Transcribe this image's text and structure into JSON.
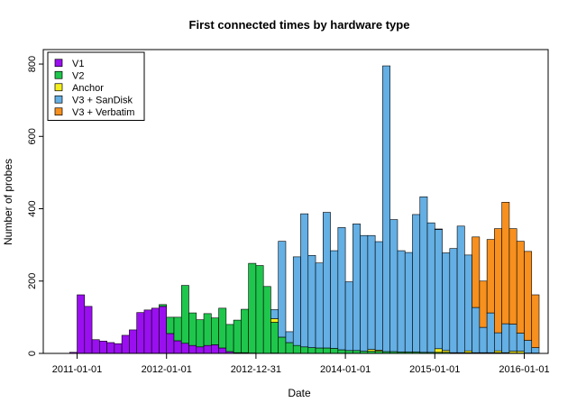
{
  "chart_data": {
    "type": "bar",
    "stacked": true,
    "title": "First connected times by hardware type",
    "xlabel": "Date",
    "ylabel": "Number of probes",
    "ylim": [
      0,
      840
    ],
    "yticks": [
      0,
      200,
      400,
      600,
      800
    ],
    "bin_count": 64,
    "bin_start": "2010-11-01",
    "bin_unit": "month",
    "x_tick_labels": [
      {
        "label": "2011-01-01",
        "bin": 2
      },
      {
        "label": "2012-01-01",
        "bin": 14
      },
      {
        "label": "2012-12-31",
        "bin": 26
      },
      {
        "label": "2014-01-01",
        "bin": 38
      },
      {
        "label": "2015-01-01",
        "bin": 50
      },
      {
        "label": "2016-01-01",
        "bin": 62
      }
    ],
    "grid": false,
    "legend_position": "top-left",
    "series": [
      {
        "name": "V1",
        "color": "#9a0ff0",
        "values": [
          0,
          3,
          162,
          130,
          38,
          34,
          30,
          27,
          50,
          65,
          113,
          120,
          125,
          130,
          55,
          35,
          28,
          22,
          18,
          22,
          24,
          15,
          5,
          2,
          2,
          1,
          0,
          0,
          1,
          0,
          0,
          0,
          0,
          0,
          0,
          0,
          0,
          0,
          0,
          0,
          0,
          0,
          0,
          0,
          0,
          0,
          0,
          0,
          0,
          0,
          0,
          0,
          0,
          0,
          0,
          0,
          0,
          0,
          0,
          0,
          0,
          0,
          0,
          0
        ]
      },
      {
        "name": "V2",
        "color": "#1fc64c",
        "values": [
          0,
          0,
          0,
          0,
          0,
          0,
          0,
          0,
          0,
          0,
          0,
          0,
          0,
          5,
          45,
          65,
          160,
          90,
          75,
          88,
          74,
          110,
          75,
          90,
          120,
          248,
          243,
          185,
          85,
          45,
          30,
          22,
          18,
          16,
          15,
          15,
          14,
          10,
          8,
          8,
          6,
          6,
          6,
          5,
          5,
          4,
          4,
          4,
          3,
          3,
          3,
          3,
          2,
          2,
          2,
          2,
          2,
          2,
          2,
          2,
          1,
          1,
          1,
          1
        ]
      },
      {
        "name": "Anchor",
        "color": "#f4ee1d",
        "values": [
          0,
          0,
          0,
          0,
          0,
          0,
          0,
          0,
          0,
          0,
          0,
          0,
          0,
          0,
          0,
          0,
          0,
          0,
          0,
          0,
          0,
          0,
          0,
          0,
          0,
          0,
          0,
          0,
          10,
          0,
          0,
          0,
          0,
          0,
          0,
          0,
          0,
          0,
          0,
          0,
          0,
          5,
          3,
          0,
          0,
          0,
          0,
          0,
          0,
          0,
          10,
          5,
          0,
          0,
          5,
          0,
          0,
          0,
          5,
          0,
          5,
          5,
          0,
          0
        ]
      },
      {
        "name": "V3 + SanDisk",
        "color": "#64afe4",
        "values": [
          0,
          0,
          0,
          0,
          0,
          0,
          0,
          0,
          0,
          0,
          0,
          0,
          0,
          0,
          0,
          0,
          0,
          0,
          0,
          0,
          0,
          0,
          0,
          0,
          0,
          0,
          0,
          0,
          25,
          265,
          30,
          245,
          368,
          255,
          235,
          375,
          270,
          338,
          190,
          350,
          320,
          315,
          300,
          790,
          365,
          280,
          275,
          380,
          430,
          358,
          330,
          270,
          288,
          350,
          265,
          125,
          70,
          110,
          50,
          80,
          75,
          50,
          35,
          15
        ]
      },
      {
        "name": "V3 + Verbatim",
        "color": "#f7901e",
        "values": [
          0,
          0,
          0,
          0,
          0,
          0,
          0,
          0,
          0,
          0,
          0,
          0,
          0,
          0,
          0,
          0,
          0,
          0,
          0,
          0,
          0,
          0,
          0,
          0,
          0,
          0,
          0,
          0,
          0,
          0,
          0,
          0,
          0,
          0,
          0,
          0,
          0,
          0,
          0,
          0,
          0,
          0,
          0,
          0,
          0,
          0,
          0,
          0,
          0,
          0,
          0,
          0,
          0,
          0,
          0,
          0,
          0,
          0,
          0,
          0,
          0,
          0,
          0,
          0
        ]
      }
    ],
    "top_series_override": {
      "name": "V3 + Verbatim",
      "totals": [
        0,
        3,
        162,
        130,
        38,
        34,
        30,
        27,
        50,
        65,
        113,
        120,
        125,
        135,
        100,
        100,
        188,
        112,
        93,
        110,
        98,
        125,
        80,
        92,
        122,
        249,
        243,
        185,
        121,
        310,
        60,
        267,
        386,
        271,
        250,
        390,
        284,
        348,
        198,
        358,
        326,
        326,
        309,
        795,
        370,
        284,
        279,
        384,
        433,
        361,
        344,
        278,
        290,
        352,
        272,
        322,
        200,
        315,
        345,
        418,
        345,
        310,
        282,
        162
      ]
    }
  }
}
